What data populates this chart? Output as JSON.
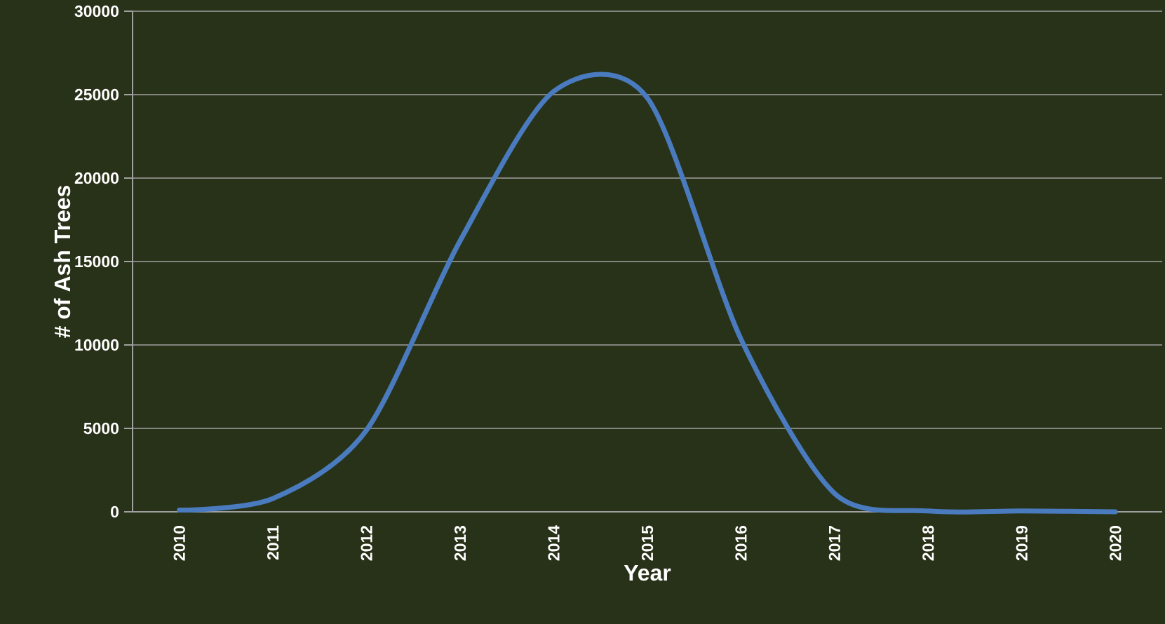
{
  "chart_data": {
    "type": "line",
    "xlabel": "Year",
    "ylabel": "# of Ash Trees",
    "categories": [
      "2010",
      "2011",
      "2012",
      "2013",
      "2014",
      "2015",
      "2016",
      "2017",
      "2018",
      "2019",
      "2020"
    ],
    "series": [
      {
        "color": "#4a7bbf",
        "values": [
          100,
          800,
          4900,
          16250,
          25200,
          24800,
          10350,
          1100,
          50,
          50,
          0
        ]
      }
    ],
    "ylim": [
      0,
      30000
    ],
    "yticks": [
      0,
      5000,
      10000,
      15000,
      20000,
      25000,
      30000
    ],
    "grid": "y",
    "legend": false,
    "marker": "none",
    "line_style": "solid"
  }
}
